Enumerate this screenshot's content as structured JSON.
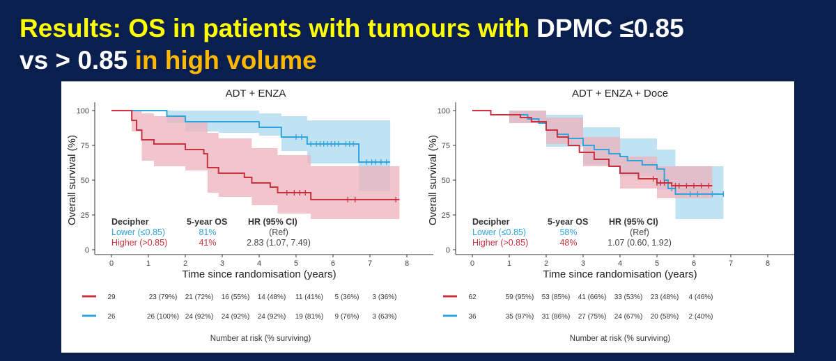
{
  "slide": {
    "title_part1": "Results: OS in patients with tumours with ",
    "title_part2": "DPMC ≤0.85",
    "title_part3": "vs > 0.85 ",
    "title_part4": "in high volume"
  },
  "colors": {
    "lower": "#2ea3dc",
    "higher": "#c8303f",
    "lower_ci": "#a9d9ef",
    "higher_ci": "#eeb2bc",
    "title_yellow": "#ffff00",
    "title_orange": "#ffb800",
    "background": "#0b1f4e"
  },
  "chart_data": [
    {
      "type": "line",
      "title": "ADT + ENZA",
      "xlabel": "Time since randomisation (years)",
      "ylabel": "Overall survival (%)",
      "xlim": [
        0,
        8
      ],
      "ylim": [
        0,
        100
      ],
      "xticks": [
        0,
        1,
        2,
        3,
        4,
        5,
        6,
        7,
        8
      ],
      "yticks": [
        0,
        25,
        50,
        75,
        100
      ],
      "series": [
        {
          "name": "Lower (≤0.85)",
          "color": "#2ea3dc",
          "points": [
            [
              0,
              100
            ],
            [
              1.5,
              100
            ],
            [
              1.5,
              96
            ],
            [
              2,
              96
            ],
            [
              2,
              92
            ],
            [
              2.9,
              92
            ],
            [
              4,
              92
            ],
            [
              4,
              88
            ],
            [
              4.6,
              88
            ],
            [
              4.6,
              81
            ],
            [
              5.3,
              81
            ],
            [
              5.3,
              76
            ],
            [
              6.7,
              76
            ],
            [
              6.7,
              63
            ],
            [
              7.55,
              63
            ]
          ],
          "censor": [
            5.0,
            5.15,
            5.4,
            5.55,
            5.65,
            5.75,
            5.85,
            5.95,
            6.05,
            6.15,
            6.35,
            6.45,
            6.55,
            6.9,
            7.05,
            7.15,
            7.3,
            7.45
          ],
          "ci_upper": [
            [
              0,
              100
            ],
            [
              1.5,
              100
            ],
            [
              2,
              100
            ],
            [
              2.9,
              100
            ],
            [
              4,
              98
            ],
            [
              4.6,
              96
            ],
            [
              5.3,
              93
            ],
            [
              6.7,
              93
            ],
            [
              7.55,
              93
            ]
          ],
          "ci_lower": [
            [
              0,
              100
            ],
            [
              1.5,
              91
            ],
            [
              2,
              85
            ],
            [
              2.9,
              84
            ],
            [
              4,
              82
            ],
            [
              4.6,
              71
            ],
            [
              5.3,
              62
            ],
            [
              6.7,
              42
            ],
            [
              7.55,
              42
            ]
          ]
        },
        {
          "name": "Higher (>0.85)",
          "color": "#c8303f",
          "points": [
            [
              0,
              100
            ],
            [
              0.55,
              100
            ],
            [
              0.55,
              93
            ],
            [
              0.68,
              93
            ],
            [
              0.68,
              86
            ],
            [
              0.82,
              86
            ],
            [
              0.82,
              79
            ],
            [
              1.15,
              79
            ],
            [
              1.15,
              76
            ],
            [
              2,
              76
            ],
            [
              2,
              72
            ],
            [
              2.5,
              72
            ],
            [
              2.5,
              69
            ],
            [
              2.6,
              69
            ],
            [
              2.6,
              59
            ],
            [
              2.9,
              59
            ],
            [
              2.9,
              55
            ],
            [
              3.6,
              55
            ],
            [
              3.6,
              52
            ],
            [
              3.8,
              52
            ],
            [
              3.8,
              48
            ],
            [
              4.3,
              48
            ],
            [
              4.3,
              45
            ],
            [
              4.5,
              45
            ],
            [
              4.5,
              41
            ],
            [
              5.4,
              41
            ],
            [
              5.4,
              36
            ],
            [
              7.8,
              36
            ]
          ],
          "censor": [
            4.75,
            4.95,
            5.1,
            5.25,
            6.4,
            6.6,
            7.7
          ],
          "ci_upper": [
            [
              0,
              100
            ],
            [
              0.55,
              100
            ],
            [
              0.82,
              98
            ],
            [
              1.15,
              96
            ],
            [
              2,
              92
            ],
            [
              2.6,
              84
            ],
            [
              2.9,
              80
            ],
            [
              3.8,
              73
            ],
            [
              4.5,
              68
            ],
            [
              5.4,
              60
            ],
            [
              7.8,
              60
            ]
          ],
          "ci_lower": [
            [
              0,
              100
            ],
            [
              0.55,
              85
            ],
            [
              0.82,
              64
            ],
            [
              1.15,
              60
            ],
            [
              2,
              57
            ],
            [
              2.6,
              41
            ],
            [
              2.9,
              38
            ],
            [
              3.8,
              32
            ],
            [
              4.5,
              26
            ],
            [
              5.4,
              22
            ],
            [
              7.8,
              22
            ]
          ]
        }
      ],
      "legend_table": {
        "header": [
          "Decipher",
          "5-year OS",
          "HR (95% CI)"
        ],
        "rows": [
          {
            "group": "Lower (≤0.85)",
            "os": "81%",
            "hr": "(Ref)"
          },
          {
            "group": "Higher (>0.85)",
            "os": "41%",
            "hr": "2.83 (1.07, 7.49)"
          }
        ]
      },
      "risk_table": {
        "label": "Number at risk (% surviving)",
        "rows": [
          {
            "series": "Higher (>0.85)",
            "values": [
              "29",
              "23 (79%)",
              "21 (72%)",
              "16 (55%)",
              "14 (48%)",
              "11 (41%)",
              "5 (36%)",
              "3 (36%)"
            ]
          },
          {
            "series": "Lower (≤0.85)",
            "values": [
              "26",
              "26 (100%)",
              "24 (92%)",
              "24 (92%)",
              "24 (92%)",
              "19 (81%)",
              "9 (76%)",
              "3 (63%)"
            ]
          }
        ]
      }
    },
    {
      "type": "line",
      "title": "ADT + ENZA + Doce",
      "xlabel": "Time since randomisation (years)",
      "ylabel": "Overall survival (%)",
      "xlim": [
        0,
        8
      ],
      "ylim": [
        0,
        100
      ],
      "xticks": [
        0,
        1,
        2,
        3,
        4,
        5,
        6,
        7,
        8
      ],
      "yticks": [
        0,
        25,
        50,
        75,
        100
      ],
      "series": [
        {
          "name": "Lower (≤0.85)",
          "color": "#2ea3dc",
          "points": [
            [
              0,
              100
            ],
            [
              0.5,
              100
            ],
            [
              0.5,
              97
            ],
            [
              1,
              97
            ],
            [
              1.5,
              94
            ],
            [
              1.8,
              91
            ],
            [
              2,
              86
            ],
            [
              2.3,
              83
            ],
            [
              2.6,
              80
            ],
            [
              3,
              75
            ],
            [
              3.3,
              72
            ],
            [
              3.7,
              69
            ],
            [
              4,
              67
            ],
            [
              4.2,
              64
            ],
            [
              4.6,
              61
            ],
            [
              5,
              58
            ],
            [
              5.2,
              50
            ],
            [
              5.3,
              44
            ],
            [
              5.5,
              40
            ],
            [
              6.8,
              40
            ]
          ],
          "censor": [
            5.4,
            5.9,
            6.1,
            6.5,
            6.8
          ],
          "ci_upper": [
            [
              0,
              100
            ],
            [
              1,
              100
            ],
            [
              2,
              97
            ],
            [
              3,
              88
            ],
            [
              4,
              80
            ],
            [
              5,
              72
            ],
            [
              5.5,
              60
            ],
            [
              6.8,
              60
            ]
          ],
          "ci_lower": [
            [
              0,
              100
            ],
            [
              1,
              91
            ],
            [
              2,
              74
            ],
            [
              3,
              61
            ],
            [
              4,
              53
            ],
            [
              5,
              43
            ],
            [
              5.5,
              22
            ],
            [
              6.8,
              22
            ]
          ]
        },
        {
          "name": "Higher (>0.85)",
          "color": "#c8303f",
          "points": [
            [
              0,
              100
            ],
            [
              0.5,
              100
            ],
            [
              0.5,
              97
            ],
            [
              1,
              97
            ],
            [
              1.3,
              95
            ],
            [
              1.6,
              92
            ],
            [
              2,
              86
            ],
            [
              2.3,
              81
            ],
            [
              2.6,
              75
            ],
            [
              2.9,
              70
            ],
            [
              3.3,
              65
            ],
            [
              3.7,
              60
            ],
            [
              4,
              55
            ],
            [
              4.5,
              51
            ],
            [
              5,
              48
            ],
            [
              5.4,
              46
            ],
            [
              6.5,
              46
            ]
          ],
          "censor": [
            4.9,
            5.0,
            5.1,
            5.2,
            5.5,
            5.6,
            5.8,
            6.0,
            6.2,
            6.4
          ],
          "ci_upper": [
            [
              0,
              100
            ],
            [
              1,
              100
            ],
            [
              2,
              95
            ],
            [
              3,
              81
            ],
            [
              4,
              67
            ],
            [
              5,
              60
            ],
            [
              6.5,
              60
            ]
          ],
          "ci_lower": [
            [
              0,
              100
            ],
            [
              1,
              91
            ],
            [
              2,
              76
            ],
            [
              3,
              60
            ],
            [
              4,
              44
            ],
            [
              5,
              37
            ],
            [
              6.5,
              37
            ]
          ]
        }
      ],
      "legend_table": {
        "header": [
          "Decipher",
          "5-year OS",
          "HR (95% CI)"
        ],
        "rows": [
          {
            "group": "Lower (≤0.85)",
            "os": "58%",
            "hr": "(Ref)"
          },
          {
            "group": "Higher (>0.85)",
            "os": "48%",
            "hr": "1.07 (0.60, 1.92)"
          }
        ]
      },
      "risk_table": {
        "label": "Number at risk (% surviving)",
        "rows": [
          {
            "series": "Higher (>0.85)",
            "values": [
              "62",
              "59 (95%)",
              "53 (85%)",
              "41 (66%)",
              "33 (53%)",
              "23 (48%)",
              "4 (46%)"
            ]
          },
          {
            "series": "Lower (≤0.85)",
            "values": [
              "36",
              "35 (97%)",
              "31 (86%)",
              "27 (75%)",
              "24 (67%)",
              "20 (58%)",
              "2 (40%)"
            ]
          }
        ]
      }
    }
  ]
}
